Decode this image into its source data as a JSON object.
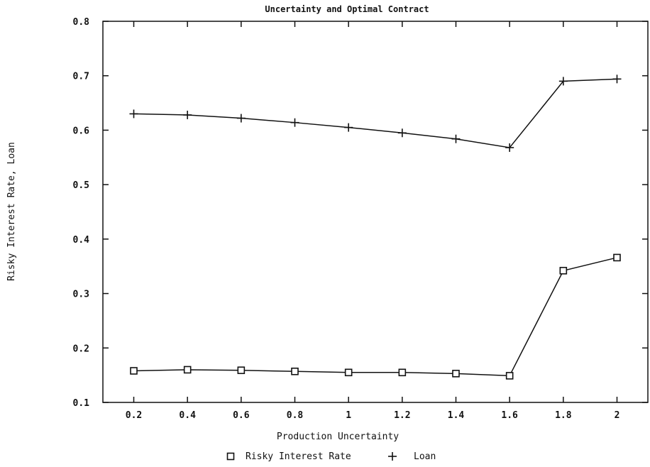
{
  "chart_data": {
    "type": "line",
    "title": "Uncertainty and Optimal Contract",
    "xlabel": "Production Uncertainty",
    "ylabel": "Risky Interest Rate, Loan",
    "x": [
      0.2,
      0.4,
      0.6,
      0.8,
      1,
      1.2,
      1.4,
      1.6,
      1.8,
      2
    ],
    "xlim": [
      0.085,
      2.115
    ],
    "ylim": [
      0.1,
      0.8
    ],
    "xticks": [
      "0.2",
      "0.4",
      "0.6",
      "0.8",
      "1",
      "1.2",
      "1.4",
      "1.6",
      "1.8",
      "2"
    ],
    "yticks": [
      "0.1",
      "0.2",
      "0.3",
      "0.4",
      "0.5",
      "0.6",
      "0.7",
      "0.8"
    ],
    "grid": false,
    "legend_position": "bottom-center",
    "series": [
      {
        "name": "Risky Interest Rate",
        "marker": "square",
        "values": [
          0.158,
          0.16,
          0.159,
          0.157,
          0.155,
          0.155,
          0.153,
          0.149,
          0.342,
          0.366
        ]
      },
      {
        "name": "Loan",
        "marker": "plus",
        "values": [
          0.63,
          0.628,
          0.622,
          0.614,
          0.605,
          0.595,
          0.584,
          0.568,
          0.69,
          0.694
        ]
      }
    ],
    "line_color": "#111111"
  }
}
